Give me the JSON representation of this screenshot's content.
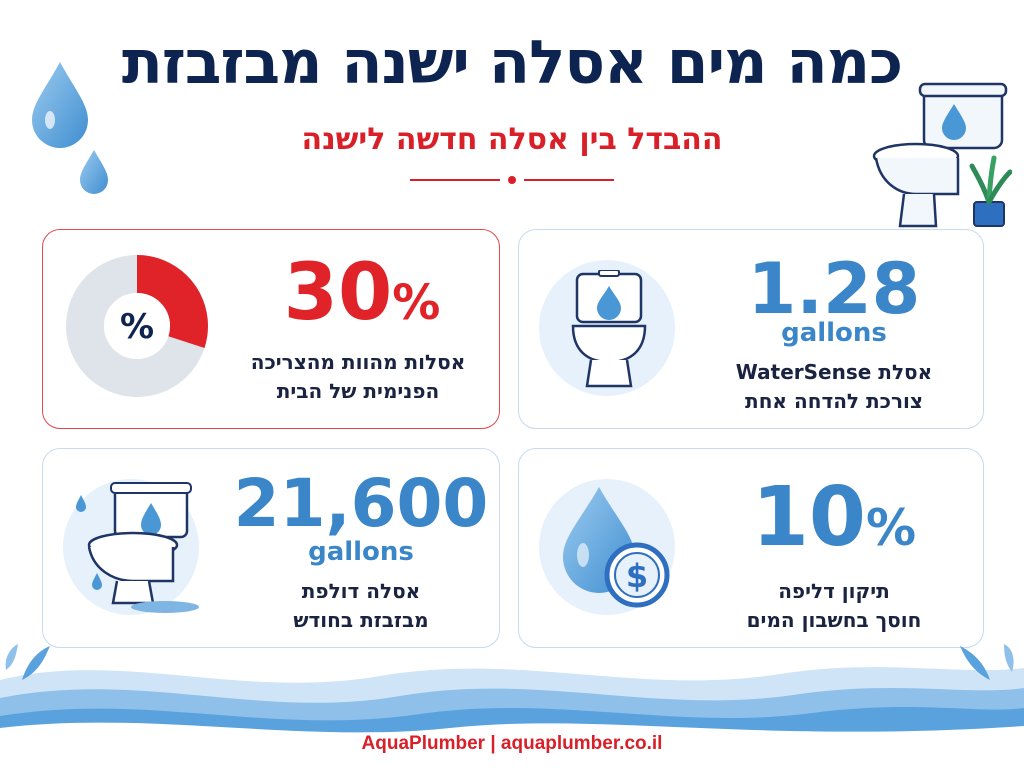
{
  "header": {
    "title": "כמה מים אסלה ישנה מבזבזת",
    "subtitle": "ההבדל בין אסלה חדשה לישנה"
  },
  "colors": {
    "navy": "#0d2350",
    "red": "#d92029",
    "blue": "#3a86c8",
    "light_blue": "#e7f1fb"
  },
  "cards": [
    {
      "id": "watersense",
      "value": "1.28",
      "unit": "gallons",
      "line1": "אסלת WaterSense",
      "line2": "צורכת להדחה אחת",
      "icon": "toilet-drop-icon"
    },
    {
      "id": "share",
      "value": "30",
      "unit_symbol": "%",
      "percent_fraction": 0.3,
      "donut_label": "%",
      "line1": "אסלות מהוות מהצריכה",
      "line2": "הפנימית של הבית",
      "icon": "donut-chart-icon"
    },
    {
      "id": "savings",
      "value": "10",
      "unit_symbol": "%",
      "line1": "תיקון דליפה",
      "line2": "חוסך בחשבון המים",
      "icon": "drop-coin-icon",
      "coin_symbol": "$"
    },
    {
      "id": "leak",
      "value": "21,600",
      "unit": "gallons",
      "line1": "אסלה דולפת",
      "line2": "מבזבזת בחודש",
      "icon": "leaking-toilet-icon"
    }
  ],
  "footer": {
    "text": "AquaPlumber | aquaplumber.co.il"
  }
}
